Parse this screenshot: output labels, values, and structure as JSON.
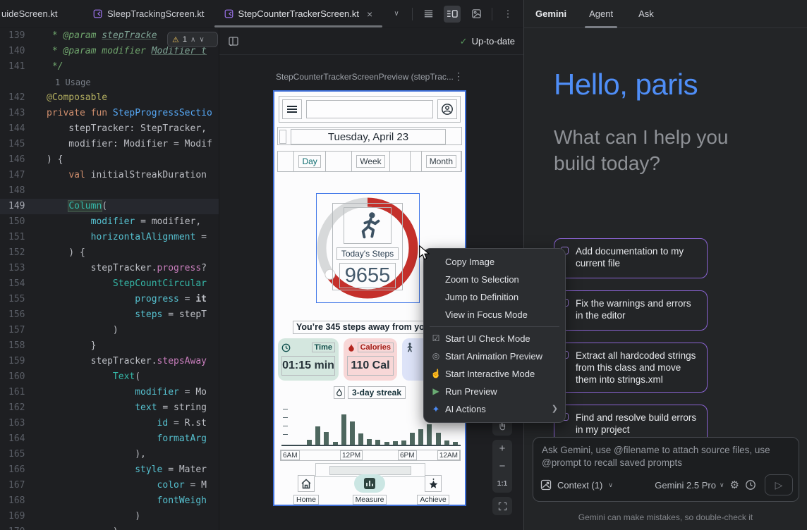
{
  "tab_bar": {
    "tabs": [
      {
        "label": "uideScreen.kt",
        "active": false
      },
      {
        "label": "SleepTrackingScreen.kt",
        "active": false
      },
      {
        "label": "StepCounterTrackerScreen.kt",
        "active": true
      }
    ]
  },
  "icons": {
    "close": "×",
    "chevron_down": "∨",
    "chevron_up": "∧",
    "kebab": "⋮",
    "check": "✓",
    "warning": "⚠",
    "plus": "+",
    "minus": "−",
    "send": "▷",
    "gear": "⚙"
  },
  "editor": {
    "usage_hint": "1 Usage",
    "inspection_warnings": "1",
    "lines": [
      {
        "n": "139",
        "t": [
          [
            "cm",
            " * @param "
          ],
          [
            "cmref",
            "stepTracke"
          ]
        ]
      },
      {
        "n": "140",
        "t": [
          [
            "cm",
            " * @param modifier "
          ],
          [
            "cmref",
            "Modifier t"
          ]
        ]
      },
      {
        "n": "141",
        "t": [
          [
            "cm",
            " */"
          ]
        ]
      },
      {
        "usage": "1 Usage"
      },
      {
        "n": "142",
        "t": [
          [
            "ann",
            "@Composable"
          ]
        ]
      },
      {
        "n": "143",
        "t": [
          [
            "kw",
            "private fun "
          ],
          [
            "fn",
            "StepProgressSectio"
          ]
        ]
      },
      {
        "n": "144",
        "t": [
          [
            "pl",
            "    stepTracker: StepTracker,"
          ]
        ]
      },
      {
        "n": "145",
        "t": [
          [
            "pl",
            "    modifier: Modifier = Modif"
          ]
        ]
      },
      {
        "n": "146",
        "t": [
          [
            "pl",
            ") {"
          ]
        ]
      },
      {
        "n": "147",
        "t": [
          [
            "pl",
            "    "
          ],
          [
            "kw",
            "val"
          ],
          [
            "pl",
            " initialStreakDuration"
          ]
        ]
      },
      {
        "n": "148",
        "t": []
      },
      {
        "n": "149",
        "hl": true,
        "t": [
          [
            "pl",
            "    "
          ],
          [
            "callhl",
            "Column"
          ],
          [
            "pl",
            "("
          ]
        ]
      },
      {
        "n": "150",
        "t": [
          [
            "pl",
            "        "
          ],
          [
            "named",
            "modifier"
          ],
          [
            "pl",
            " = modifier,"
          ]
        ]
      },
      {
        "n": "151",
        "t": [
          [
            "pl",
            "        "
          ],
          [
            "named",
            "horizontalAlignment"
          ],
          [
            "pl",
            " ="
          ]
        ]
      },
      {
        "n": "152",
        "t": [
          [
            "pl",
            "    ) {"
          ]
        ]
      },
      {
        "n": "153",
        "t": [
          [
            "pl",
            "        stepTracker."
          ],
          [
            "prop",
            "progress"
          ],
          [
            "pl",
            "?"
          ]
        ]
      },
      {
        "n": "154",
        "t": [
          [
            "pl",
            "            "
          ],
          [
            "call",
            "StepCountCircular"
          ]
        ]
      },
      {
        "n": "155",
        "t": [
          [
            "pl",
            "                "
          ],
          [
            "named",
            "progress"
          ],
          [
            "pl",
            " = "
          ],
          [
            "it",
            "it"
          ]
        ]
      },
      {
        "n": "156",
        "t": [
          [
            "pl",
            "                "
          ],
          [
            "named",
            "steps"
          ],
          [
            "pl",
            " = stepT"
          ]
        ]
      },
      {
        "n": "157",
        "t": [
          [
            "pl",
            "            )"
          ]
        ]
      },
      {
        "n": "158",
        "t": [
          [
            "pl",
            "        }"
          ]
        ]
      },
      {
        "n": "159",
        "t": [
          [
            "pl",
            "        stepTracker."
          ],
          [
            "prop",
            "stepsAway"
          ]
        ]
      },
      {
        "n": "160",
        "t": [
          [
            "pl",
            "            "
          ],
          [
            "call",
            "Text"
          ],
          [
            "pl",
            "("
          ]
        ]
      },
      {
        "n": "161",
        "t": [
          [
            "pl",
            "                "
          ],
          [
            "named",
            "modifier"
          ],
          [
            "pl",
            " = Mo"
          ]
        ]
      },
      {
        "n": "162",
        "t": [
          [
            "pl",
            "                "
          ],
          [
            "named",
            "text"
          ],
          [
            "pl",
            " = string"
          ]
        ]
      },
      {
        "n": "163",
        "t": [
          [
            "pl",
            "                    "
          ],
          [
            "named",
            "id"
          ],
          [
            "pl",
            " = R.st"
          ]
        ]
      },
      {
        "n": "164",
        "t": [
          [
            "pl",
            "                    "
          ],
          [
            "named",
            "formatArg"
          ]
        ]
      },
      {
        "n": "165",
        "t": [
          [
            "pl",
            "                ),"
          ]
        ]
      },
      {
        "n": "166",
        "t": [
          [
            "pl",
            "                "
          ],
          [
            "named",
            "style"
          ],
          [
            "pl",
            " = Mater"
          ]
        ]
      },
      {
        "n": "167",
        "t": [
          [
            "pl",
            "                    "
          ],
          [
            "named",
            "color"
          ],
          [
            "pl",
            " = M"
          ]
        ]
      },
      {
        "n": "168",
        "t": [
          [
            "pl",
            "                    "
          ],
          [
            "named",
            "fontWeigh"
          ]
        ]
      },
      {
        "n": "169",
        "t": [
          [
            "pl",
            "                )"
          ]
        ]
      },
      {
        "n": "170",
        "t": [
          [
            "pl",
            "            )"
          ]
        ]
      }
    ]
  },
  "preview_panel": {
    "status": "Up-to-date",
    "title": "StepCounterTrackerScreenPreview (stepTrac...",
    "zoom_label": "1:1",
    "phone": {
      "date": "Tuesday, April 23",
      "tabs": [
        "Day",
        "Week",
        "Month"
      ],
      "steps_label": "Today's Steps",
      "steps_value": "9655",
      "away_text": "You’re 345 steps away from your",
      "stats": [
        {
          "label": "Time",
          "value": "01:15 min"
        },
        {
          "label": "Calories",
          "value": "110 Cal"
        }
      ],
      "streak": "3-day streak",
      "nav": [
        "Home",
        "Measure",
        "Achieve"
      ]
    }
  },
  "chart_data": {
    "type": "bar",
    "title": "Hourly steps bar chart in preview",
    "x_labels": [
      "6AM",
      "12PM",
      "6PM",
      "12AM"
    ],
    "values": [
      16,
      60,
      42,
      9,
      98,
      76,
      37,
      18,
      16,
      9,
      11,
      14,
      39,
      51,
      67,
      39,
      14,
      9
    ],
    "ylim": [
      0,
      100
    ],
    "bar_color": "#4E675F"
  },
  "context_menu": {
    "items": [
      {
        "label": "Copy Image"
      },
      {
        "label": "Zoom to Selection"
      },
      {
        "label": "Jump to Definition"
      },
      {
        "label": "View in Focus Mode"
      },
      {
        "divider": true
      },
      {
        "label": "Start UI Check Mode",
        "icon": "ui-check",
        "glyph": "☑"
      },
      {
        "label": "Start Animation Preview",
        "icon": "animation",
        "glyph": "◎"
      },
      {
        "label": "Start Interactive Mode",
        "icon": "interactive",
        "glyph": "☝"
      },
      {
        "label": "Run Preview",
        "icon": "run",
        "glyph": "▶"
      },
      {
        "label": "AI Actions",
        "icon": "ai",
        "glyph": "✦",
        "submenu": true
      }
    ]
  },
  "gemini": {
    "title": "Gemini",
    "tabs": [
      {
        "label": "Agent",
        "active": true
      },
      {
        "label": "Ask",
        "active": false
      }
    ],
    "greeting": "Hello, paris",
    "subtitle": "What can I help you build today?",
    "suggestions": [
      "Add documentation to my current file",
      "Fix the warnings and errors in the editor",
      "Extract all hardcoded strings from this class and move them into strings.xml",
      "Find and resolve build errors in my project"
    ],
    "input_placeholder": "Ask Gemini, use @filename to attach source files, use @prompt to recall saved prompts",
    "context_label": "Context (1)",
    "model_label": "Gemini 2.5 Pro",
    "disclaimer": "Gemini can make mistakes, so double-check it"
  },
  "colors": {
    "accent_blue": "#4F8EF7",
    "selection_blue": "#3E6FD9",
    "ring_red": "#C4302B",
    "card_purple": "#8A63D2",
    "mint": "#D4E7DF",
    "pink": "#F8D7D7",
    "status_green": "#57965C"
  }
}
